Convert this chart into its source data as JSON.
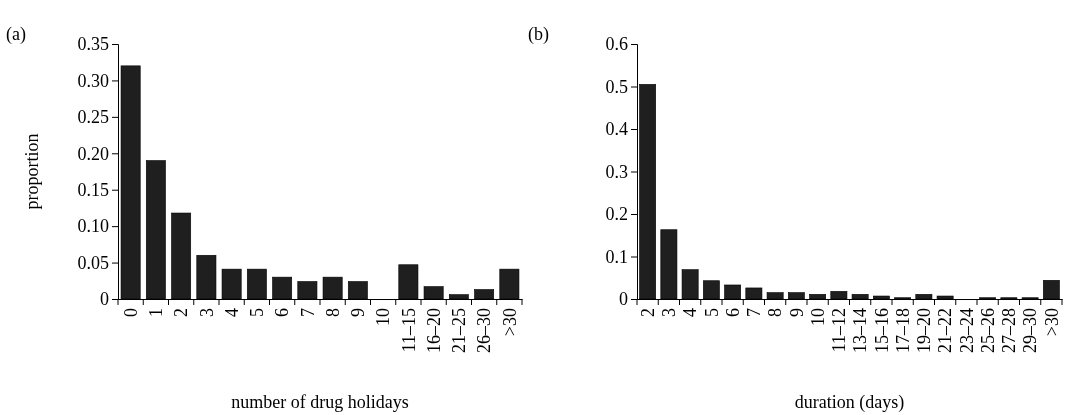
{
  "chart_data": [
    {
      "type": "bar",
      "title": "(a)",
      "xlabel": "number of drug holidays",
      "ylabel": "proportion",
      "categories": [
        "0",
        "1",
        "2",
        "3",
        "4",
        "5",
        "6",
        "7",
        "8",
        "9",
        "10",
        "11–15",
        "16–20",
        "21–25",
        "26–30",
        ">30"
      ],
      "values": [
        0.32,
        0.19,
        0.118,
        0.06,
        0.041,
        0.041,
        0.03,
        0.024,
        0.03,
        0.024,
        0,
        0.047,
        0.017,
        0.006,
        0.013,
        0.041
      ],
      "color": "#1f1f1f",
      "ylim": [
        0,
        0.35
      ],
      "yticks": [
        0,
        0.05,
        {
          "value": 0.1,
          "label": "0.10"
        },
        0.15,
        {
          "value": 0.2,
          "label": "0.20"
        },
        0.25,
        {
          "value": 0.3,
          "label": "0.30"
        },
        0.35
      ]
    },
    {
      "type": "bar",
      "title": "(b)",
      "xlabel": "duration (days)",
      "categories": [
        "2",
        "3",
        "4",
        "5",
        "6",
        "7",
        "8",
        "9",
        "10",
        "11–12",
        "13–14",
        "15–16",
        "17–18",
        "19–20",
        "21–22",
        "23–24",
        "25–26",
        "27–28",
        "29–30",
        ">30"
      ],
      "values": [
        0.505,
        0.163,
        0.069,
        0.043,
        0.033,
        0.026,
        0.015,
        0.015,
        0.011,
        0.018,
        0.011,
        0.007,
        0.003,
        0.011,
        0.007,
        0,
        0.003,
        0.003,
        0.003,
        0.044
      ],
      "color": "#1f1f1f",
      "ylim": [
        0,
        0.6
      ],
      "yticks": [
        0,
        0.1,
        0.2,
        0.3,
        0.4,
        0.5,
        0.6
      ]
    }
  ]
}
